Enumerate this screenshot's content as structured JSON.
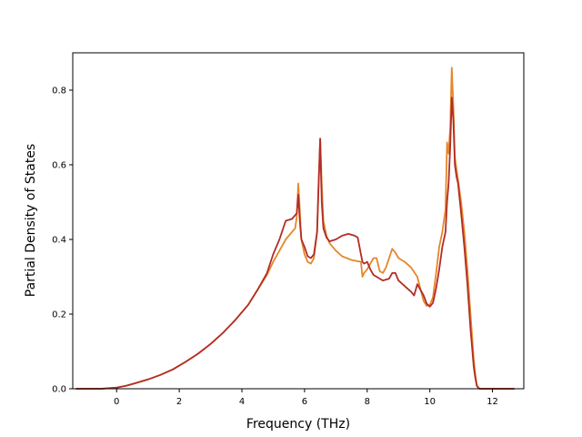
{
  "chart_data": {
    "type": "line",
    "xlabel": "Frequency (THz)",
    "ylabel": "Partial Density of States",
    "xlim": [
      -1.4,
      13.0
    ],
    "ylim": [
      0.0,
      0.9
    ],
    "xticks": [
      "0",
      "2",
      "4",
      "6",
      "8",
      "10",
      "12"
    ],
    "yticks": [
      "0.0",
      "0.2",
      "0.4",
      "0.6",
      "0.8"
    ],
    "grid": false,
    "legend": "none",
    "series": [
      {
        "color": "#e6862a",
        "x": [
          -1.3,
          -0.5,
          0,
          0.3,
          0.6,
          1.0,
          1.4,
          1.8,
          2.2,
          2.6,
          3.0,
          3.4,
          3.8,
          4.2,
          4.5,
          4.8,
          5.0,
          5.2,
          5.4,
          5.6,
          5.7,
          5.75,
          5.8,
          5.85,
          5.9,
          6.0,
          6.1,
          6.2,
          6.3,
          6.4,
          6.45,
          6.5,
          6.55,
          6.6,
          6.7,
          6.8,
          7.0,
          7.2,
          7.5,
          7.8,
          7.85,
          7.9,
          8.0,
          8.1,
          8.2,
          8.3,
          8.4,
          8.5,
          8.6,
          8.7,
          8.8,
          8.9,
          9.0,
          9.2,
          9.4,
          9.6,
          9.8,
          9.9,
          10.0,
          10.1,
          10.2,
          10.3,
          10.4,
          10.5,
          10.55,
          10.6,
          10.65,
          10.7,
          10.75,
          10.8,
          10.85,
          10.9,
          11.0,
          11.1,
          11.2,
          11.3,
          11.4,
          11.45,
          11.5,
          11.55,
          11.6,
          11.8,
          12.2,
          12.7
        ],
        "y": [
          0,
          0,
          0.003,
          0.008,
          0.015,
          0.025,
          0.037,
          0.052,
          0.072,
          0.094,
          0.12,
          0.15,
          0.185,
          0.225,
          0.265,
          0.305,
          0.34,
          0.37,
          0.4,
          0.42,
          0.43,
          0.46,
          0.55,
          0.48,
          0.4,
          0.36,
          0.34,
          0.335,
          0.35,
          0.42,
          0.55,
          0.67,
          0.55,
          0.45,
          0.41,
          0.39,
          0.37,
          0.355,
          0.345,
          0.34,
          0.3,
          0.31,
          0.32,
          0.335,
          0.35,
          0.35,
          0.315,
          0.31,
          0.325,
          0.35,
          0.375,
          0.365,
          0.35,
          0.34,
          0.325,
          0.3,
          0.235,
          0.222,
          0.225,
          0.245,
          0.31,
          0.38,
          0.42,
          0.48,
          0.66,
          0.63,
          0.7,
          0.86,
          0.76,
          0.62,
          0.59,
          0.56,
          0.5,
          0.42,
          0.32,
          0.2,
          0.08,
          0.04,
          0.01,
          0.003,
          0,
          0,
          0,
          0
        ]
      },
      {
        "color": "#b22d26",
        "x": [
          -1.3,
          -0.5,
          0,
          0.3,
          0.6,
          1.0,
          1.4,
          1.8,
          2.2,
          2.6,
          3.0,
          3.4,
          3.8,
          4.2,
          4.5,
          4.8,
          5.0,
          5.2,
          5.4,
          5.6,
          5.7,
          5.75,
          5.8,
          5.85,
          5.9,
          6.0,
          6.1,
          6.2,
          6.3,
          6.4,
          6.45,
          6.5,
          6.55,
          6.6,
          6.7,
          6.8,
          7.0,
          7.2,
          7.4,
          7.6,
          7.7,
          7.8,
          7.85,
          7.9,
          8.0,
          8.1,
          8.2,
          8.3,
          8.5,
          8.7,
          8.8,
          8.9,
          9.0,
          9.2,
          9.4,
          9.5,
          9.6,
          9.8,
          9.9,
          10.0,
          10.1,
          10.2,
          10.3,
          10.4,
          10.5,
          10.55,
          10.6,
          10.65,
          10.7,
          10.75,
          10.8,
          10.85,
          10.9,
          11.0,
          11.1,
          11.2,
          11.3,
          11.4,
          11.45,
          11.5,
          11.55,
          11.6,
          11.8,
          12.2,
          12.7
        ],
        "y": [
          0,
          0,
          0.003,
          0.008,
          0.015,
          0.025,
          0.037,
          0.052,
          0.072,
          0.094,
          0.12,
          0.15,
          0.185,
          0.225,
          0.265,
          0.31,
          0.36,
          0.4,
          0.45,
          0.455,
          0.465,
          0.47,
          0.52,
          0.45,
          0.4,
          0.38,
          0.355,
          0.35,
          0.36,
          0.42,
          0.55,
          0.67,
          0.5,
          0.43,
          0.405,
          0.395,
          0.4,
          0.41,
          0.415,
          0.41,
          0.405,
          0.36,
          0.34,
          0.335,
          0.34,
          0.32,
          0.305,
          0.3,
          0.29,
          0.295,
          0.31,
          0.31,
          0.29,
          0.275,
          0.26,
          0.25,
          0.28,
          0.25,
          0.228,
          0.22,
          0.23,
          0.27,
          0.32,
          0.38,
          0.42,
          0.5,
          0.55,
          0.65,
          0.78,
          0.72,
          0.6,
          0.57,
          0.55,
          0.47,
          0.38,
          0.28,
          0.16,
          0.06,
          0.03,
          0.008,
          0.002,
          0,
          0,
          0,
          0
        ]
      }
    ]
  }
}
